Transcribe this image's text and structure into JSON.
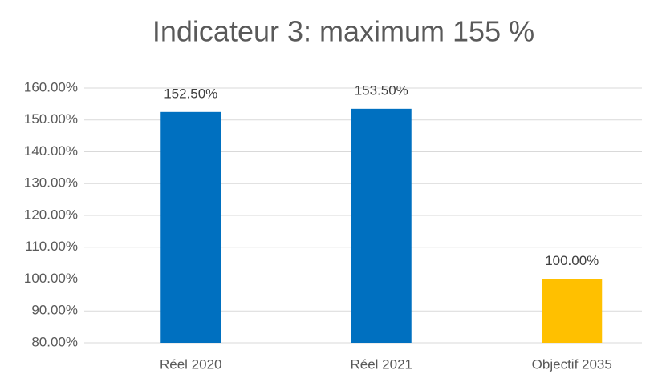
{
  "chart_data": {
    "type": "bar",
    "title": "Indicateur 3: maximum 155 %",
    "categories": [
      "Réel 2020",
      "Réel 2021",
      "Objectif 2035"
    ],
    "values": [
      152.5,
      153.5,
      100
    ],
    "value_labels": [
      "152.50%",
      "153.50%",
      "100.00%"
    ],
    "colors": [
      "#0070c0",
      "#0070c0",
      "#ffc000"
    ],
    "ylim": [
      80,
      160
    ],
    "yticks": [
      {
        "value": 80,
        "label": "80.00%"
      },
      {
        "value": 90,
        "label": "90.00%"
      },
      {
        "value": 100,
        "label": "100.00%"
      },
      {
        "value": 110,
        "label": "110.00%"
      },
      {
        "value": 120,
        "label": "120.00%"
      },
      {
        "value": 130,
        "label": "130.00%"
      },
      {
        "value": 140,
        "label": "140.00%"
      },
      {
        "value": 150,
        "label": "150.00%"
      },
      {
        "value": 160,
        "label": "160.00%"
      }
    ],
    "grid": true
  }
}
